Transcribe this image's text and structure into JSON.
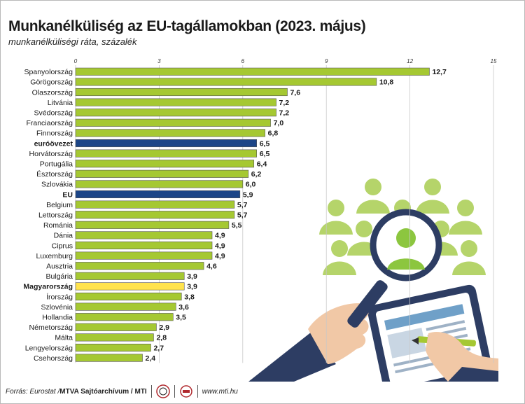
{
  "header": {
    "title": "Munkanélküliség az EU-tagállamokban (2023. május)",
    "subtitle": "munkanélküliségi ráta, százalék"
  },
  "footer": {
    "source_label": "Forrás: Eurostat / ",
    "archive": "MTVA Sajtóarchívum / MTI",
    "url": "www.mti.hu"
  },
  "colors": {
    "default_bar": "#a5c832",
    "aggregate_bar": "#1c4587",
    "highlight_bar": "#ffe34d",
    "illustration_green": "#b5d46a"
  },
  "illustration": {
    "icons": [
      "person-icon",
      "magnifying-glass-icon",
      "clipboard-icon",
      "pen-icon",
      "hand-icon"
    ]
  },
  "chart_data": {
    "type": "bar",
    "orientation": "horizontal",
    "xlim": [
      0,
      15
    ],
    "xticks": [
      0,
      3,
      6,
      9,
      12,
      15
    ],
    "grid": true,
    "categories": [
      "Spanyolország",
      "Görögország",
      "Olaszország",
      "Litvánia",
      "Svédország",
      "Franciaország",
      "Finnország",
      "euróövezet",
      "Horvátország",
      "Portugália",
      "Észtország",
      "Szlovákia",
      "EU",
      "Belgium",
      "Lettország",
      "Románia",
      "Dánia",
      "Ciprus",
      "Luxemburg",
      "Ausztria",
      "Bulgária",
      "Magyarország",
      "Írország",
      "Szlovénia",
      "Hollandia",
      "Németország",
      "Málta",
      "Lengyelország",
      "Csehország"
    ],
    "value_labels": [
      "12,7",
      "10,8",
      "7,6",
      "7,2",
      "7,2",
      "7,0",
      "6,8",
      "6,5",
      "6,5",
      "6,4",
      "6,2",
      "6,0",
      "5,9",
      "5,7",
      "5,7",
      "5,5",
      "4,9",
      "4,9",
      "4,9",
      "4,6",
      "3,9",
      "3,9",
      "3,8",
      "3,6",
      "3,5",
      "2,9",
      "2,8",
      "2,7",
      "2,4"
    ],
    "values": [
      12.7,
      10.8,
      7.6,
      7.2,
      7.2,
      7.0,
      6.8,
      6.5,
      6.5,
      6.4,
      6.2,
      6.0,
      5.9,
      5.7,
      5.7,
      5.5,
      4.9,
      4.9,
      4.9,
      4.6,
      3.9,
      3.9,
      3.8,
      3.6,
      3.5,
      2.9,
      2.8,
      2.7,
      2.4
    ],
    "bar_kind": [
      "country",
      "country",
      "country",
      "country",
      "country",
      "country",
      "country",
      "aggregate",
      "country",
      "country",
      "country",
      "country",
      "aggregate",
      "country",
      "country",
      "country",
      "country",
      "country",
      "country",
      "country",
      "country",
      "highlight",
      "country",
      "country",
      "country",
      "country",
      "country",
      "country",
      "country"
    ]
  }
}
